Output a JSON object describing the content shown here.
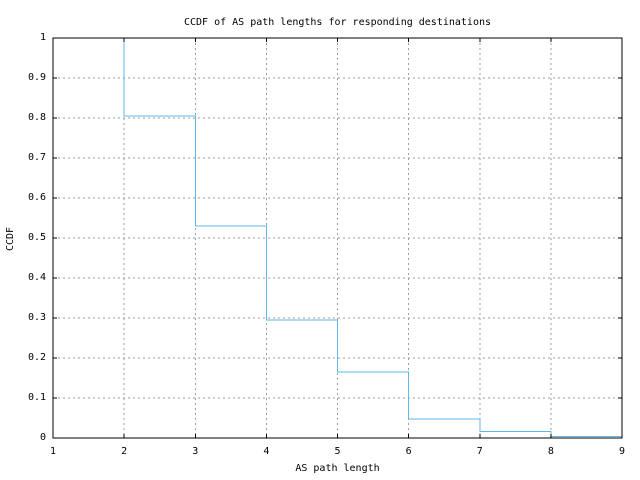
{
  "chart_data": {
    "type": "line",
    "line_style": "step-post",
    "title": "CCDF of AS path lengths for responding destinations",
    "xlabel": "AS path length",
    "ylabel": "CCDF",
    "x": [
      1,
      2,
      3,
      4,
      5,
      6,
      7,
      8,
      9
    ],
    "y": [
      1.0,
      0.805,
      0.53,
      0.295,
      0.165,
      0.048,
      0.016,
      0.004,
      0.004
    ],
    "xlim": [
      1,
      9
    ],
    "ylim": [
      0,
      1
    ],
    "xticks": [
      1,
      2,
      3,
      4,
      5,
      6,
      7,
      8,
      9
    ],
    "xtick_labels": [
      "1",
      "2",
      "3",
      "4",
      "5",
      "6",
      "7",
      "8",
      "9"
    ],
    "yticks": [
      0,
      0.1,
      0.2,
      0.3,
      0.4,
      0.5,
      0.6,
      0.7,
      0.8,
      0.9,
      1
    ],
    "ytick_labels": [
      "0",
      "0.1",
      "0.2",
      "0.3",
      "0.4",
      "0.5",
      "0.6",
      "0.7",
      "0.8",
      "0.9",
      "1"
    ],
    "grid": true,
    "legend": "none",
    "colors": {
      "line": "#5fb8e8",
      "grid": "#9e9e9e",
      "axis": "#000000",
      "background": "#ffffff",
      "text": "#000000"
    }
  }
}
